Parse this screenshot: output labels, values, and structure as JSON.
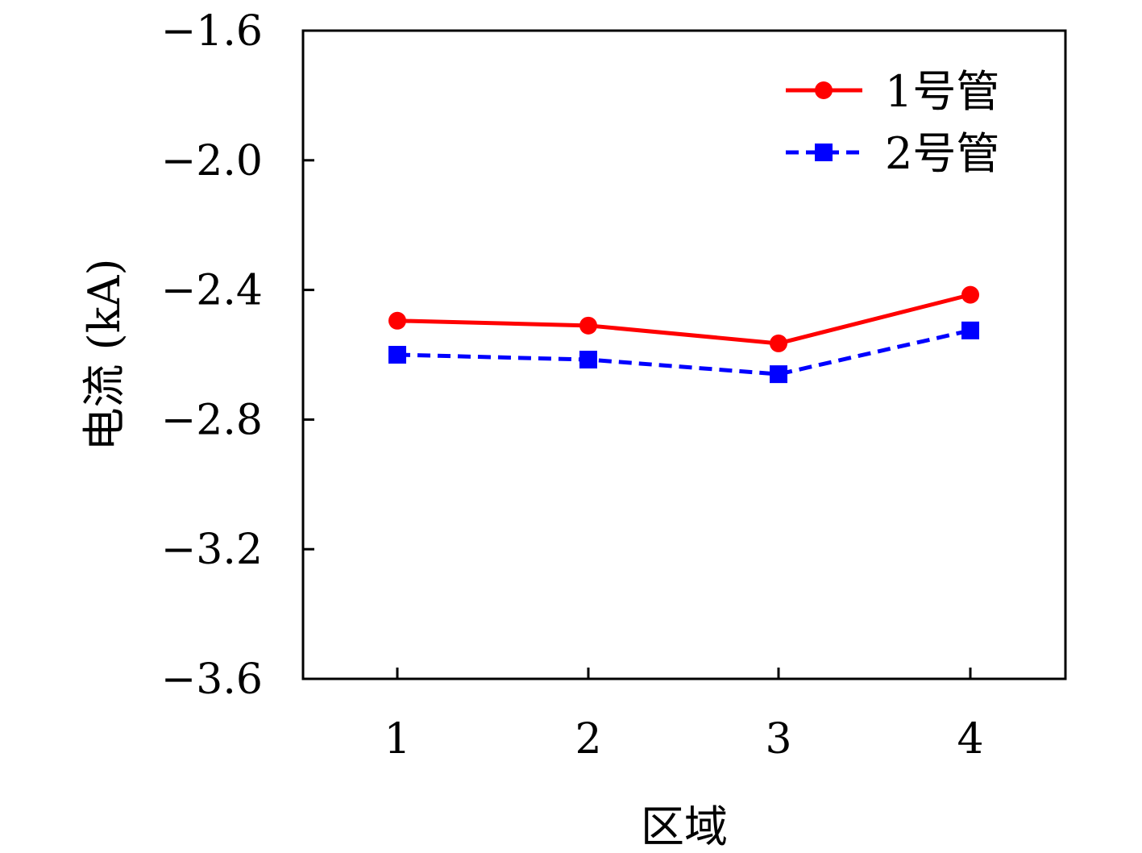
{
  "chart_data": {
    "type": "line",
    "xlabel": "区域",
    "ylabel": "电流 (kA)",
    "categories": [
      "1",
      "2",
      "3",
      "4"
    ],
    "ylim": [
      -3.6,
      -1.6
    ],
    "yticks": [
      "−1.6",
      "−2.0",
      "−2.4",
      "−2.8",
      "−3.2",
      "−3.6"
    ],
    "ytick_values": [
      -1.6,
      -2.0,
      -2.4,
      -2.8,
      -3.2,
      -3.6
    ],
    "grid": false,
    "legend_position": "top-right",
    "series": [
      {
        "name": "1号管",
        "values": [
          -2.495,
          -2.51,
          -2.565,
          -2.415
        ],
        "color": "#ff0000",
        "marker": "circle",
        "line_style": "solid"
      },
      {
        "name": "2号管",
        "values": [
          -2.6,
          -2.615,
          -2.66,
          -2.525
        ],
        "color": "#0000ff",
        "marker": "square",
        "line_style": "dashed"
      }
    ]
  }
}
